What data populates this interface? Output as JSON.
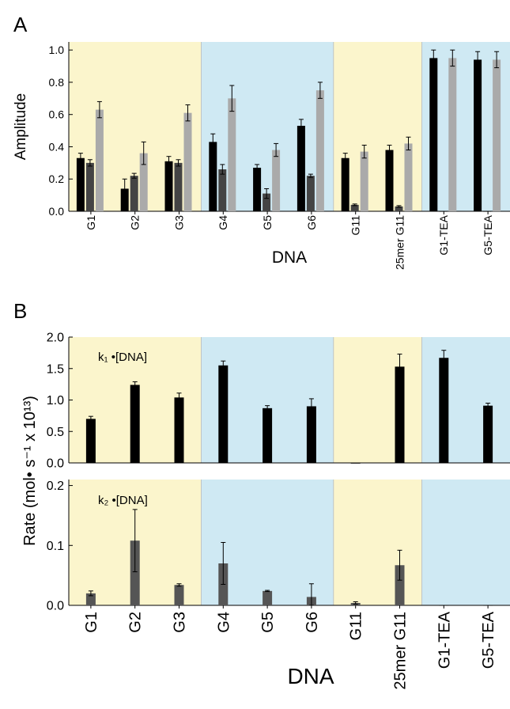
{
  "chart_data": [
    {
      "panel": "A",
      "type": "bar",
      "xlabel": "DNA",
      "ylabel": "Amplitude",
      "ylim": [
        0,
        1.05
      ],
      "yticks": [
        "0.0",
        "0.2",
        "0.4",
        "0.6",
        "0.8",
        "1.0"
      ],
      "categories": [
        "G1",
        "G2",
        "G3",
        "G4",
        "G5",
        "G6",
        "G11",
        "25mer G11",
        "G1-TEA",
        "G5-TEA"
      ],
      "background_groups": [
        {
          "from": 0,
          "to": 2,
          "color": "#fbf5cc"
        },
        {
          "from": 3,
          "to": 5,
          "color": "#cfe9f3"
        },
        {
          "from": 6,
          "to": 7,
          "color": "#fbf5cc"
        },
        {
          "from": 8,
          "to": 9,
          "color": "#cfe9f3"
        }
      ],
      "series": [
        {
          "color": "#000000",
          "values": [
            0.33,
            0.14,
            0.31,
            0.43,
            0.27,
            0.53,
            0.33,
            0.38,
            0.95,
            0.94
          ],
          "errors": [
            0.03,
            0.06,
            0.03,
            0.05,
            0.02,
            0.04,
            0.03,
            0.03,
            0.05,
            0.05
          ]
        },
        {
          "color": "#444444",
          "values": [
            0.3,
            0.22,
            0.3,
            0.26,
            0.11,
            0.22,
            0.04,
            0.03,
            0.0,
            0.0
          ],
          "errors": [
            0.02,
            0.015,
            0.02,
            0.03,
            0.03,
            0.01,
            0.005,
            0.005,
            0,
            0
          ]
        },
        {
          "color": "#aaaaaa",
          "values": [
            0.63,
            0.36,
            0.61,
            0.7,
            0.38,
            0.75,
            0.37,
            0.42,
            0.95,
            0.94
          ],
          "errors": [
            0.05,
            0.07,
            0.05,
            0.08,
            0.04,
            0.05,
            0.04,
            0.04,
            0.05,
            0.05
          ]
        }
      ]
    },
    {
      "panel": "B",
      "type": "bar",
      "annotation": "k₁ •[DNA]",
      "ylim": [
        0,
        2.0
      ],
      "yticks": [
        "0.0",
        "0.5",
        "1.0",
        "1.5",
        "2.0"
      ],
      "categories": [
        "G1",
        "G2",
        "G3",
        "G4",
        "G5",
        "G6",
        "G11",
        "25mer G11",
        "G1-TEA",
        "G5-TEA"
      ],
      "series": [
        {
          "color": "#000000",
          "values": [
            0.7,
            1.24,
            1.04,
            1.55,
            0.87,
            0.9,
            0.0,
            1.53,
            1.67,
            0.91
          ],
          "errors": [
            0.04,
            0.05,
            0.07,
            0.07,
            0.04,
            0.12,
            0.0,
            0.2,
            0.12,
            0.04
          ]
        }
      ]
    },
    {
      "panel": "B",
      "type": "bar",
      "annotation": "k₂ •[DNA]",
      "xlabel": "DNA",
      "ylabel": "Rate (mol• s⁻¹ x 10¹³)",
      "ylim": [
        0,
        0.21
      ],
      "yticks": [
        "0.0",
        "0.1",
        "0.2"
      ],
      "categories": [
        "G1",
        "G2",
        "G3",
        "G4",
        "G5",
        "G6",
        "G11",
        "25mer G11",
        "G1-TEA",
        "G5-TEA"
      ],
      "series": [
        {
          "color": "#555555",
          "values": [
            0.02,
            0.108,
            0.034,
            0.07,
            0.024,
            0.014,
            0.004,
            0.067,
            0.0,
            0.0
          ],
          "errors": [
            0.004,
            0.052,
            0.002,
            0.035,
            0.001,
            0.022,
            0.002,
            0.025,
            0,
            0
          ]
        }
      ]
    }
  ],
  "panel_labels": [
    "A",
    "B"
  ]
}
